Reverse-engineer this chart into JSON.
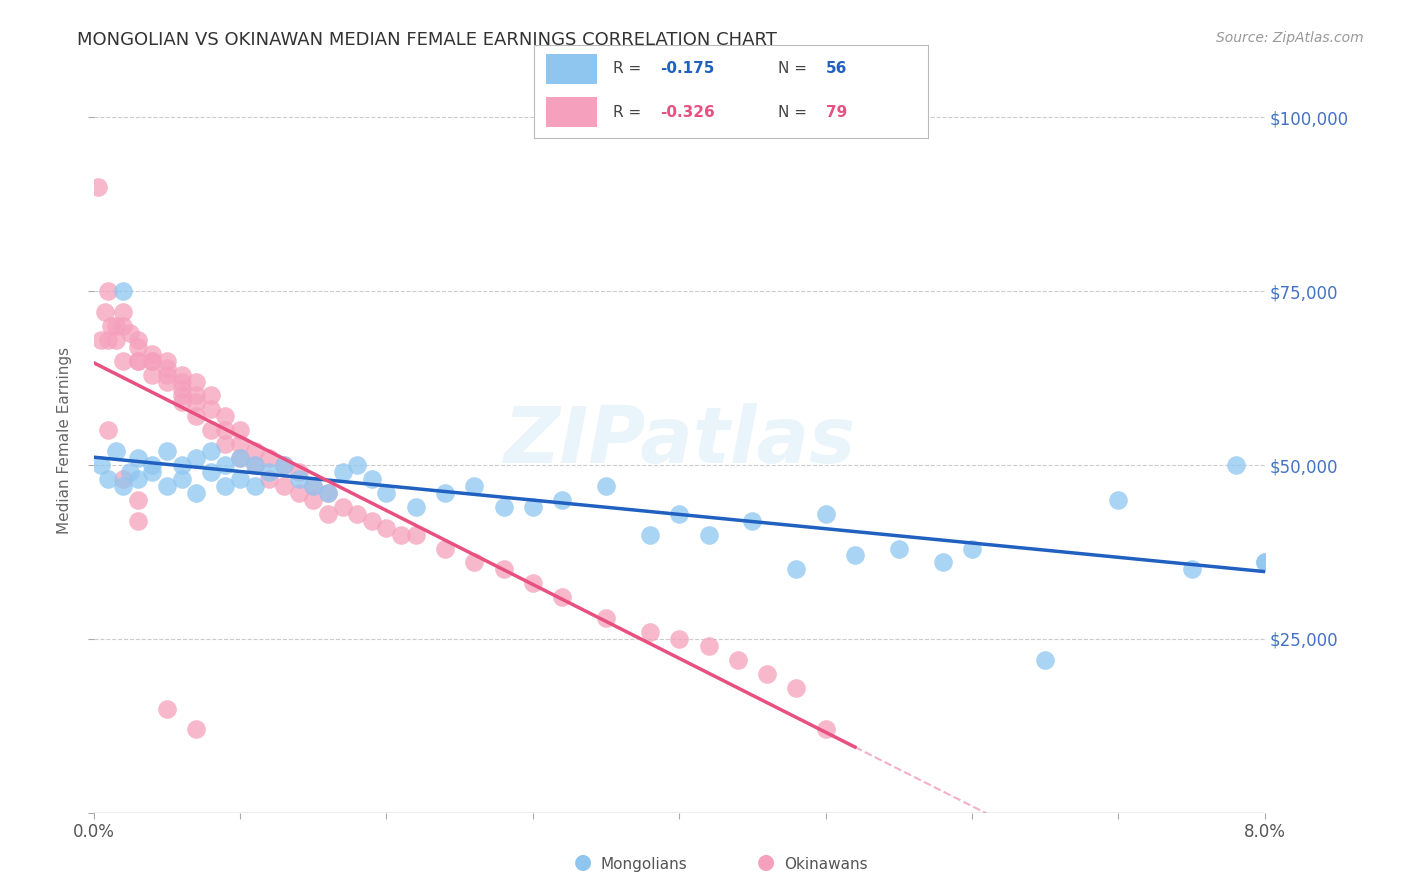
{
  "title": "MONGOLIAN VS OKINAWAN MEDIAN FEMALE EARNINGS CORRELATION CHART",
  "source": "Source: ZipAtlas.com",
  "ylabel_label": "Median Female Earnings",
  "mongolian_color": "#8ec6f0",
  "okinawan_color": "#f5a0bc",
  "mongolian_line_color": "#2060c0",
  "okinawan_line_color": "#e85080",
  "mongolian_R": -0.175,
  "mongolian_N": 56,
  "okinawan_R": -0.326,
  "okinawan_N": 79,
  "background_color": "#ffffff",
  "grid_color": "#cccccc",
  "title_color": "#333333",
  "source_color": "#999999",
  "right_tick_color": "#4472c4",
  "mongolians_x": [
    0.0005,
    0.001,
    0.0015,
    0.002,
    0.002,
    0.0025,
    0.003,
    0.003,
    0.004,
    0.004,
    0.005,
    0.005,
    0.006,
    0.006,
    0.007,
    0.007,
    0.008,
    0.008,
    0.009,
    0.009,
    0.01,
    0.01,
    0.011,
    0.011,
    0.012,
    0.013,
    0.014,
    0.015,
    0.016,
    0.017,
    0.018,
    0.019,
    0.02,
    0.022,
    0.024,
    0.026,
    0.028,
    0.03,
    0.032,
    0.035,
    0.038,
    0.04,
    0.042,
    0.045,
    0.048,
    0.05,
    0.052,
    0.055,
    0.058,
    0.06,
    0.065,
    0.07,
    0.075,
    0.078,
    0.08,
    0.08
  ],
  "mongolians_y": [
    50000,
    48000,
    52000,
    47000,
    75000,
    49000,
    51000,
    48000,
    50000,
    49000,
    52000,
    47000,
    50000,
    48000,
    51000,
    46000,
    49000,
    52000,
    47000,
    50000,
    48000,
    51000,
    50000,
    47000,
    49000,
    50000,
    48000,
    47000,
    46000,
    49000,
    50000,
    48000,
    46000,
    44000,
    46000,
    47000,
    44000,
    44000,
    45000,
    47000,
    40000,
    43000,
    40000,
    42000,
    35000,
    43000,
    37000,
    38000,
    36000,
    38000,
    22000,
    45000,
    35000,
    50000,
    36000,
    36000
  ],
  "okinawans_x": [
    0.0003,
    0.0005,
    0.0008,
    0.001,
    0.001,
    0.0012,
    0.0015,
    0.0015,
    0.002,
    0.002,
    0.002,
    0.0025,
    0.003,
    0.003,
    0.003,
    0.003,
    0.004,
    0.004,
    0.004,
    0.004,
    0.005,
    0.005,
    0.005,
    0.005,
    0.006,
    0.006,
    0.006,
    0.006,
    0.006,
    0.007,
    0.007,
    0.007,
    0.007,
    0.008,
    0.008,
    0.008,
    0.009,
    0.009,
    0.009,
    0.01,
    0.01,
    0.01,
    0.011,
    0.011,
    0.012,
    0.012,
    0.013,
    0.013,
    0.014,
    0.014,
    0.015,
    0.015,
    0.016,
    0.016,
    0.017,
    0.018,
    0.019,
    0.02,
    0.021,
    0.022,
    0.024,
    0.026,
    0.028,
    0.03,
    0.032,
    0.035,
    0.038,
    0.04,
    0.042,
    0.044,
    0.046,
    0.048,
    0.05,
    0.001,
    0.002,
    0.003,
    0.003,
    0.005,
    0.007
  ],
  "okinawans_y": [
    90000,
    68000,
    72000,
    75000,
    68000,
    70000,
    70000,
    68000,
    72000,
    70000,
    65000,
    69000,
    67000,
    65000,
    65000,
    68000,
    66000,
    65000,
    63000,
    65000,
    65000,
    63000,
    62000,
    64000,
    62000,
    61000,
    63000,
    60000,
    59000,
    62000,
    60000,
    59000,
    57000,
    60000,
    58000,
    55000,
    57000,
    55000,
    53000,
    55000,
    53000,
    51000,
    52000,
    50000,
    51000,
    48000,
    50000,
    47000,
    49000,
    46000,
    47000,
    45000,
    46000,
    43000,
    44000,
    43000,
    42000,
    41000,
    40000,
    40000,
    38000,
    36000,
    35000,
    33000,
    31000,
    28000,
    26000,
    25000,
    24000,
    22000,
    20000,
    18000,
    12000,
    55000,
    48000,
    45000,
    42000,
    15000,
    12000
  ],
  "trend_ok_solid_end": 0.052,
  "xlim": [
    0.0,
    0.08
  ],
  "ylim": [
    0,
    107000
  ]
}
